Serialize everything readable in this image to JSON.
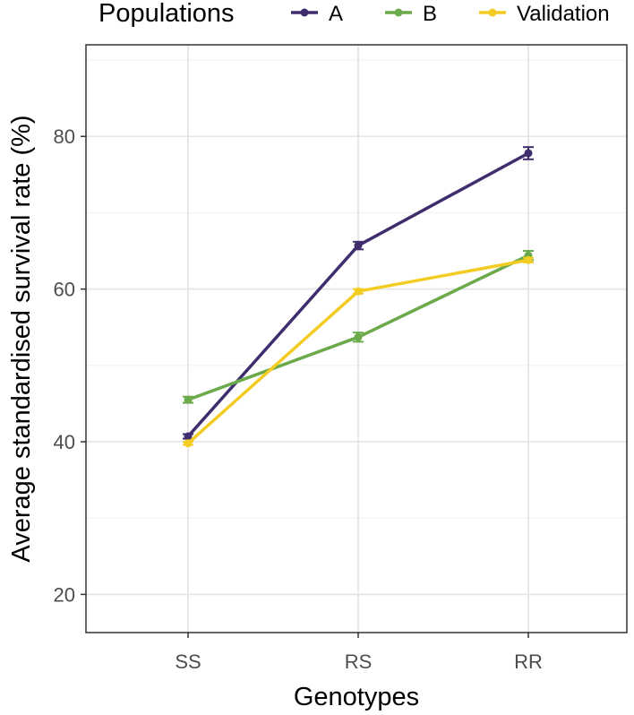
{
  "chart_data": {
    "type": "line",
    "xlabel": "Genotypes",
    "ylabel": "Average standardised survival rate (%)",
    "categories": [
      "SS",
      "RS",
      "RR"
    ],
    "ylim": [
      15,
      92
    ],
    "yticks": [
      20,
      40,
      60,
      80
    ],
    "grid": true,
    "legend": {
      "title": "Populations",
      "placement": "top"
    },
    "series": [
      {
        "name": "A",
        "color": "#3f2d6e",
        "values": [
          40.7,
          65.7,
          77.8
        ],
        "error": [
          0.3,
          0.5,
          0.8
        ]
      },
      {
        "name": "B",
        "color": "#6aaa4a",
        "values": [
          45.5,
          53.7,
          64.4
        ],
        "error": [
          0.4,
          0.6,
          0.6
        ]
      },
      {
        "name": "Validation",
        "color": "#f2cc22",
        "values": [
          39.8,
          59.7,
          63.8
        ],
        "error": [
          0.2,
          0.3,
          0.3
        ]
      }
    ]
  }
}
